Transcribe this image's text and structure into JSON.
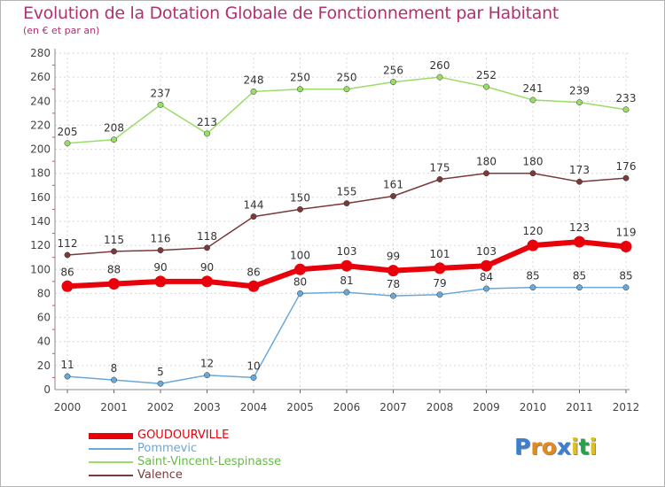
{
  "header": {
    "title": "Evolution de la Dotation Globale de Fonctionnement par Habitant",
    "subtitle": "(en € et par an)"
  },
  "logo": {
    "letters": [
      "P",
      "r",
      "o",
      "x",
      "i",
      "t",
      "i"
    ],
    "colors": [
      "#3a7fd0",
      "#e08a20",
      "#e08a20",
      "#3a7fd0",
      "#e0c020",
      "#2aa04a",
      "#e0c020"
    ]
  },
  "chart_data": {
    "type": "line",
    "x": [
      "2000",
      "2001",
      "2002",
      "2003",
      "2004",
      "2005",
      "2006",
      "2007",
      "2008",
      "2009",
      "2010",
      "2011",
      "2012"
    ],
    "ylim": [
      0,
      280
    ],
    "yticks": [
      "0",
      "20",
      "40",
      "60",
      "80",
      "100",
      "120",
      "140",
      "160",
      "180",
      "200",
      "220",
      "240",
      "260",
      "280"
    ],
    "grid": true,
    "legend_position": "bottom-left",
    "series": [
      {
        "name": "GOUDOURVILLE",
        "color": "#e8000a",
        "values": [
          86,
          88,
          90,
          90,
          86,
          100,
          103,
          99,
          101,
          103,
          120,
          123,
          119
        ]
      },
      {
        "name": "Pommevic",
        "color": "#6aa8d8",
        "values": [
          11,
          8,
          5,
          12,
          10,
          80,
          81,
          78,
          79,
          84,
          85,
          85,
          85
        ]
      },
      {
        "name": "Saint-Vincent-Lespinasse",
        "color": "#99dd66",
        "values": [
          205,
          208,
          237,
          213,
          248,
          250,
          250,
          256,
          260,
          252,
          241,
          239,
          233
        ]
      },
      {
        "name": "Valence",
        "color": "#7a3a3a",
        "values": [
          112,
          115,
          116,
          118,
          144,
          150,
          155,
          161,
          175,
          180,
          180,
          173,
          176
        ]
      }
    ]
  }
}
